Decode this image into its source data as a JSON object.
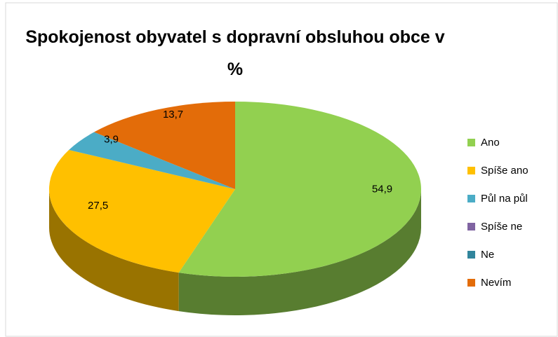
{
  "chart_data": {
    "type": "pie3d",
    "title": "Spokojenost obyvatel s dopravní obsluhou obce v %",
    "categories": [
      "Ano",
      "Spíše ano",
      "Půl na půl",
      "Spíše ne",
      "Ne",
      "Nevím"
    ],
    "values": [
      54.9,
      27.5,
      3.9,
      0,
      0,
      13.7
    ],
    "value_labels": [
      "54,9",
      "27,5",
      "3,9",
      null,
      null,
      "13,7"
    ],
    "colors": [
      "#92d050",
      "#ffc000",
      "#4bacc6",
      "#8064a2",
      "#31859c",
      "#e36c09"
    ],
    "legend": "right"
  }
}
